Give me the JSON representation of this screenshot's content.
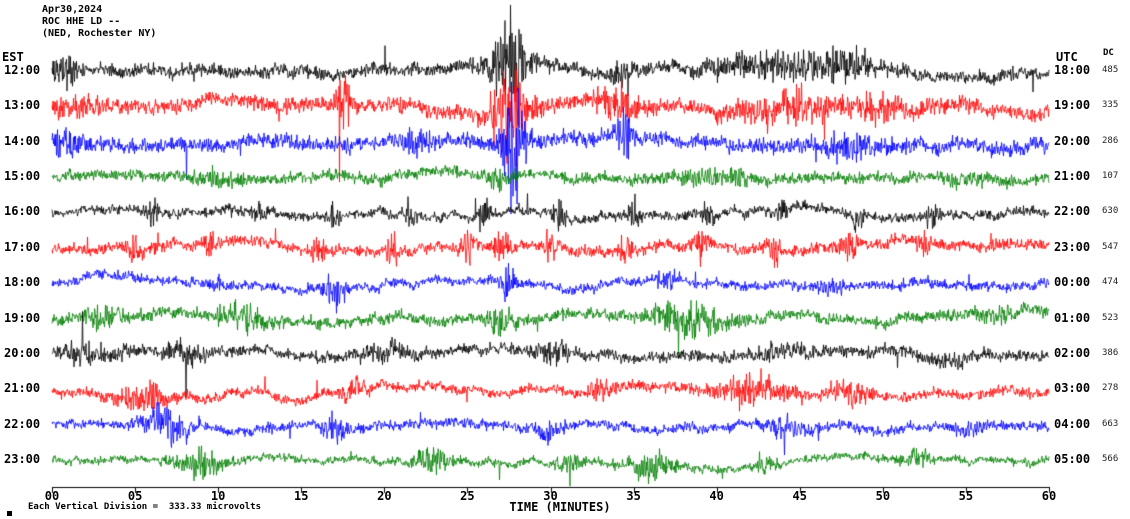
{
  "header": {
    "date": "Apr30,2024",
    "station_line": "ROC HHE LD --",
    "location_line": "(NED, Rochester NY)"
  },
  "axis": {
    "left_timezone": "EST",
    "right_timezone": "UTC",
    "dc_header": "DC",
    "x_axis_label": "TIME (MINUTES)",
    "x_ticks": [
      "00",
      "05",
      "10",
      "15",
      "20",
      "25",
      "30",
      "35",
      "40",
      "45",
      "50",
      "55",
      "60"
    ]
  },
  "footer": {
    "scale_note": "Each Vertical Division =  333.33 microvolts"
  },
  "chart_data": {
    "type": "line",
    "subtype": "helicorder-seismogram",
    "title": "ROC HHE LD -- (NED, Rochester NY)",
    "xlabel": "TIME (MINUTES)",
    "x_unit": "minutes",
    "x_range": [
      0,
      60
    ],
    "minutes_per_row": 60,
    "vertical_division_microvolts": 333.33,
    "trace_color_cycle": [
      "#000000",
      "#ff0000",
      "#0000ff",
      "#007f00"
    ],
    "rows": [
      {
        "est": "12:00",
        "utc": "18:00",
        "dc": "485",
        "color": "#000000",
        "amp": 7,
        "bursts": [
          [
            0.8,
            12,
            0.6
          ],
          [
            27.5,
            40,
            0.8
          ],
          [
            34,
            8,
            0.6
          ],
          [
            43,
            10,
            2.5
          ],
          [
            47.5,
            16,
            1.2
          ]
        ]
      },
      {
        "est": "13:00",
        "utc": "19:00",
        "dc": "335",
        "color": "#ff0000",
        "amp": 8,
        "bursts": [
          [
            1.5,
            10,
            0.8
          ],
          [
            17.6,
            22,
            0.3
          ],
          [
            27.5,
            45,
            0.7
          ],
          [
            34,
            12,
            0.8
          ],
          [
            44,
            14,
            2
          ],
          [
            50,
            10,
            1
          ]
        ]
      },
      {
        "est": "14:00",
        "utc": "20:00",
        "dc": "286",
        "color": "#0000ff",
        "amp": 8,
        "bursts": [
          [
            1,
            12,
            0.8
          ],
          [
            22,
            8,
            0.7
          ],
          [
            27.8,
            55,
            0.5
          ],
          [
            34.4,
            22,
            0.3
          ],
          [
            48,
            10,
            1.2
          ]
        ]
      },
      {
        "est": "15:00",
        "utc": "21:00",
        "dc": "107",
        "color": "#007f00",
        "amp": 6,
        "bursts": [
          [
            10,
            6,
            1
          ],
          [
            27,
            9,
            0.5
          ],
          [
            40,
            6,
            1.5
          ],
          [
            55,
            5,
            0.8
          ]
        ]
      },
      {
        "est": "16:00",
        "utc": "22:00",
        "dc": "630",
        "color": "#000000",
        "amp": 5,
        "bursts": [
          [
            6,
            14,
            0.25
          ],
          [
            12.5,
            14,
            0.25
          ],
          [
            17,
            14,
            0.25
          ],
          [
            21.5,
            14,
            0.25
          ],
          [
            26,
            14,
            0.25
          ],
          [
            30.5,
            14,
            0.25
          ],
          [
            35,
            14,
            0.25
          ],
          [
            39.5,
            14,
            0.25
          ],
          [
            44,
            14,
            0.25
          ],
          [
            48.5,
            14,
            0.25
          ],
          [
            53,
            14,
            0.25
          ]
        ]
      },
      {
        "est": "17:00",
        "utc": "23:00",
        "dc": "547",
        "color": "#ff0000",
        "amp": 6,
        "bursts": [
          [
            5,
            16,
            0.25
          ],
          [
            9.5,
            16,
            0.25
          ],
          [
            16,
            16,
            0.25
          ],
          [
            20.5,
            16,
            0.25
          ],
          [
            25,
            16,
            0.25
          ],
          [
            27,
            10,
            0.4
          ],
          [
            30,
            16,
            0.25
          ],
          [
            34.5,
            16,
            0.25
          ],
          [
            39,
            16,
            0.25
          ],
          [
            43.5,
            16,
            0.25
          ],
          [
            48,
            16,
            0.25
          ],
          [
            52.5,
            16,
            0.25
          ]
        ]
      },
      {
        "est": "18:00",
        "utc": "00:00",
        "dc": "474",
        "color": "#0000ff",
        "amp": 5,
        "bursts": [
          [
            10,
            8,
            0.4
          ],
          [
            17,
            18,
            0.4
          ],
          [
            27.5,
            20,
            0.4
          ],
          [
            37,
            10,
            0.5
          ],
          [
            47,
            6,
            0.5
          ]
        ]
      },
      {
        "est": "19:00",
        "utc": "01:00",
        "dc": "523",
        "color": "#007f00",
        "amp": 6,
        "bursts": [
          [
            3,
            10,
            0.8
          ],
          [
            11.5,
            12,
            1
          ],
          [
            27,
            10,
            0.6
          ],
          [
            38.5,
            14,
            1.5
          ],
          [
            57,
            8,
            0.8
          ]
        ]
      },
      {
        "est": "20:00",
        "utc": "02:00",
        "dc": "386",
        "color": "#000000",
        "amp": 6,
        "bursts": [
          [
            2,
            8,
            1
          ],
          [
            8,
            8,
            0.8
          ],
          [
            20,
            6,
            1
          ],
          [
            30,
            8,
            0.8
          ],
          [
            44,
            6,
            1
          ],
          [
            54,
            5,
            0.8
          ]
        ]
      },
      {
        "est": "21:00",
        "utc": "03:00",
        "dc": "278",
        "color": "#ff0000",
        "amp": 5,
        "bursts": [
          [
            5.5,
            14,
            1
          ],
          [
            18,
            12,
            0.5
          ],
          [
            33,
            10,
            0.6
          ],
          [
            42,
            12,
            1.5
          ],
          [
            48,
            10,
            0.8
          ]
        ]
      },
      {
        "est": "22:00",
        "utc": "04:00",
        "dc": "663",
        "color": "#0000ff",
        "amp": 5,
        "bursts": [
          [
            7,
            16,
            1
          ],
          [
            17,
            14,
            0.5
          ],
          [
            30,
            10,
            0.6
          ],
          [
            44,
            8,
            0.8
          ],
          [
            55,
            6,
            0.6
          ]
        ]
      },
      {
        "est": "23:00",
        "utc": "05:00",
        "dc": "566",
        "color": "#007f00",
        "amp": 4,
        "bursts": [
          [
            9,
            14,
            1
          ],
          [
            23,
            12,
            0.8
          ],
          [
            31,
            8,
            0.5
          ],
          [
            36,
            12,
            1
          ],
          [
            43,
            10,
            0.5
          ],
          [
            52,
            8,
            0.6
          ]
        ]
      }
    ]
  }
}
